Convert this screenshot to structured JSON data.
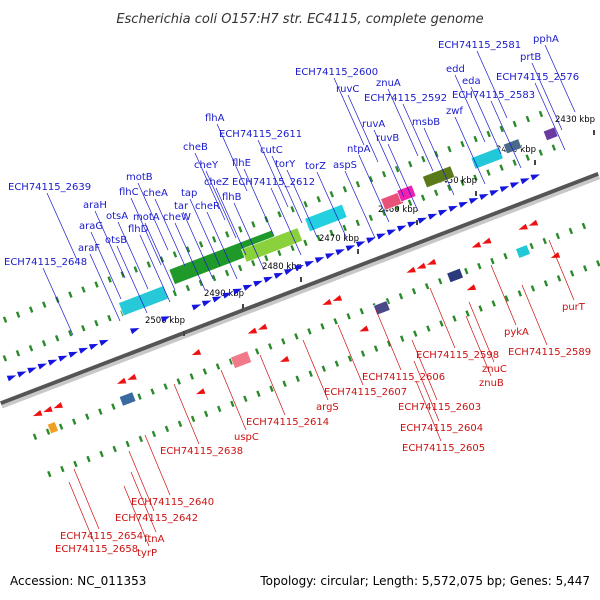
{
  "title": "Escherichia coli O157:H7 str. EC4115, complete genome",
  "footer": {
    "accession": "Accession: NC_011353",
    "summary": "Topology: circular; Length: 5,572,075 bp; Genes: 5,447"
  },
  "colors": {
    "forward_label": "#1a1acc",
    "reverse_label": "#cc1111",
    "axis_dark": "#555555",
    "axis_light": "#c8c8c8",
    "gene_forward": "#1515e0",
    "gene_reverse": "#ee1111",
    "green_dash": "#2a8a2a"
  },
  "axis_ticks": [
    "2430 kbp",
    "2440 kbp",
    "2450 kbp",
    "2460 kbp",
    "2470 kbp",
    "2480 kbp",
    "2490 kbp",
    "2500 kbp"
  ],
  "forward_labels": [
    "ECH74115_2581",
    "pphA",
    "prtB",
    "edd",
    "eda",
    "ECH74115_2576",
    "ECH74115_2583",
    "ECH74115_2600",
    "znuA",
    "ruvC",
    "ECH74115_2592",
    "zwf",
    "msbB",
    "ruvA",
    "ruvB",
    "flhA",
    "ECH74115_2611",
    "ntpA",
    "cheB",
    "cutC",
    "torY",
    "torZ",
    "aspS",
    "cheY",
    "flhE",
    "cheZ",
    "ECH74115_2612",
    "motB",
    "flhC",
    "cheA",
    "tap",
    "flhB",
    "tar",
    "cheR",
    "ECH74115_2639",
    "araH",
    "otsA",
    "motA",
    "cheW",
    "araG",
    "flhD",
    "otsB",
    "araF",
    "ECH74115_2648"
  ],
  "reverse_labels": [
    "purT",
    "pykA",
    "ECH74115_2589",
    "ECH74115_2598",
    "znuC",
    "znuB",
    "ECH74115_2606",
    "ECH74115_2607",
    "ECH74115_2603",
    "ECH74115_2604",
    "ECH74115_2605",
    "argS",
    "ECH74115_2614",
    "uspC",
    "ECH74115_2638",
    "ECH74115_2640",
    "ECH74115_2642",
    "ftnA",
    "ECH74115_2654",
    "tyrP",
    "ECH74115_2658"
  ]
}
